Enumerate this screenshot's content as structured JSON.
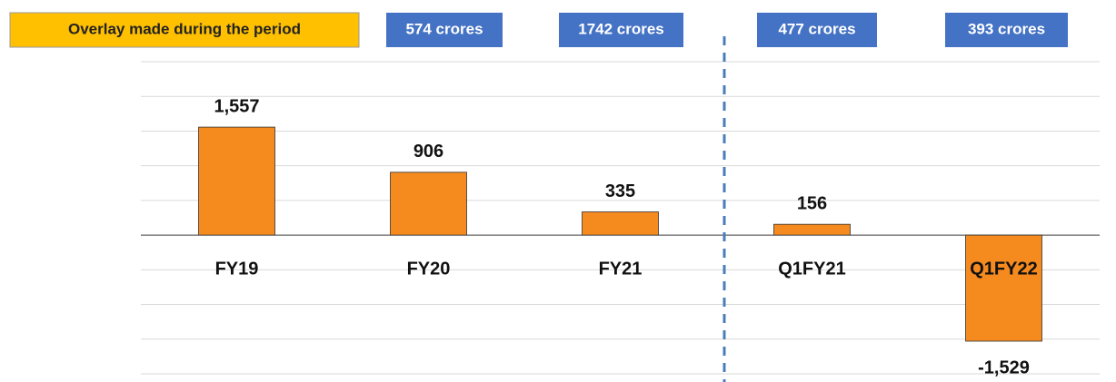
{
  "chart_data": {
    "type": "bar",
    "categories": [
      "FY19",
      "FY20",
      "FY21",
      "Q1FY21",
      "Q1FY22"
    ],
    "values": [
      1557,
      906,
      335,
      156,
      -1529
    ],
    "value_labels": [
      "1,557",
      "906",
      "335",
      "156",
      "-1,529"
    ],
    "color": "#f58a1f",
    "ylim": [
      -2000,
      2500
    ],
    "yticks": [
      -2000,
      -1500,
      -1000,
      -500,
      0,
      500,
      1000,
      1500,
      2000,
      2500
    ],
    "grid": true,
    "annotations": {
      "title": "Overlay made during the period",
      "boxes": [
        "574 crores",
        "1742 crores",
        "477 crores",
        "393 crores"
      ]
    }
  }
}
